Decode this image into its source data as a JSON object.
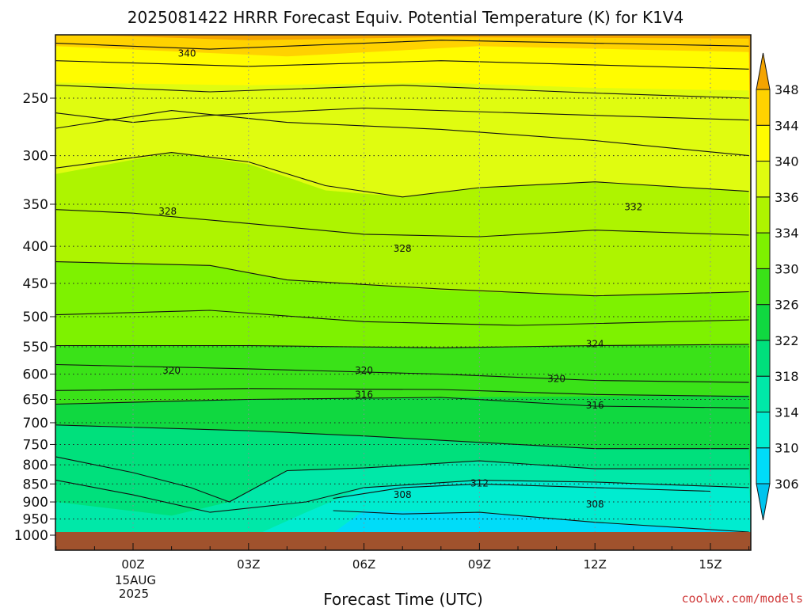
{
  "chart_data": {
    "type": "heatmap",
    "title": "2025081422 HRRR Forecast Equiv. Potential Temperature (K) for K1V4",
    "xlabel": "Forecast Time (UTC)",
    "ylabel": "",
    "x_ticks": [
      "00Z",
      "03Z",
      "06Z",
      "09Z",
      "12Z",
      "15Z"
    ],
    "x_tick_hours": [
      0,
      3,
      6,
      9,
      12,
      15
    ],
    "x_date_label": [
      "15AUG",
      "2025"
    ],
    "xlim": [
      -2,
      16
    ],
    "y_ticks": [
      250,
      300,
      350,
      400,
      450,
      500,
      550,
      600,
      650,
      700,
      750,
      800,
      850,
      900,
      950,
      1000
    ],
    "ylim": [
      200,
      1010
    ],
    "y_scale": "log",
    "colorbar": {
      "levels": [
        306,
        310,
        314,
        318,
        322,
        326,
        330,
        334,
        336,
        340,
        344,
        348
      ],
      "colors": [
        "#00c4ee",
        "#00dcf8",
        "#00ecd0",
        "#00e8a8",
        "#00e07c",
        "#10d840",
        "#3ae218",
        "#7ef200",
        "#aef400",
        "#e0fc10",
        "#fffc00",
        "#ffd200",
        "#f4a400"
      ]
    },
    "contour_labels": [
      {
        "value": "340",
        "hour": 1.4,
        "p": 217
      },
      {
        "value": "328",
        "hour": 0.9,
        "p": 358
      },
      {
        "value": "332",
        "hour": 13.0,
        "p": 353
      },
      {
        "value": "328",
        "hour": 7.0,
        "p": 403
      },
      {
        "value": "324",
        "hour": 12.0,
        "p": 545
      },
      {
        "value": "320",
        "hour": 1.0,
        "p": 593
      },
      {
        "value": "320",
        "hour": 6.0,
        "p": 593
      },
      {
        "value": "320",
        "hour": 11.0,
        "p": 609
      },
      {
        "value": "316",
        "hour": 6.0,
        "p": 640
      },
      {
        "value": "316",
        "hour": 12.0,
        "p": 662
      },
      {
        "value": "312",
        "hour": 9.0,
        "p": 848
      },
      {
        "value": "308",
        "hour": 7.0,
        "p": 880
      },
      {
        "value": "308",
        "hour": 12.0,
        "p": 907
      }
    ],
    "grid": true,
    "terrain_fill": "below ~1000 hPa",
    "credit": "coolwx.com/models"
  }
}
